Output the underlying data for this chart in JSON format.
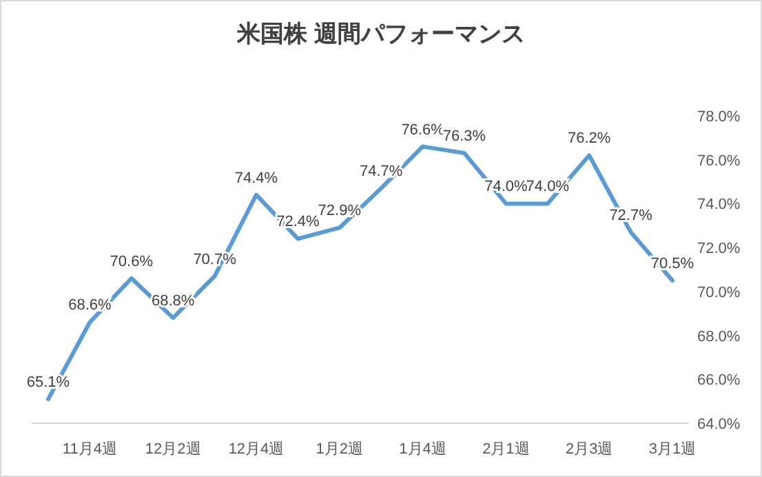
{
  "chart_data": {
    "type": "line",
    "title": "米国株 週間パフォーマンス",
    "categories": [
      null,
      "11月4週",
      null,
      "12月2週",
      null,
      "12月4週",
      null,
      "1月2週",
      null,
      "1月4週",
      null,
      "2月1週",
      null,
      "2月3週",
      null,
      "3月1週"
    ],
    "series": [
      {
        "color": "#5b9bd5",
        "values": [
          65.1,
          68.6,
          70.6,
          68.8,
          70.7,
          74.4,
          72.4,
          72.9,
          74.7,
          76.6,
          76.3,
          74.0,
          74.0,
          76.2,
          72.7,
          70.5
        ],
        "value_labels": [
          "65.1%",
          "68.6%",
          "70.6%",
          "68.8%",
          "70.7%",
          "74.4%",
          "72.4%",
          "72.9%",
          "74.7%",
          "76.6%",
          "76.3%",
          "74.0%",
          "74.0%",
          "76.2%",
          "72.7%",
          "70.5%"
        ]
      }
    ],
    "ylim": [
      64,
      78
    ],
    "yticks": [
      {
        "value": 64,
        "label": "64.0%"
      },
      {
        "value": 66,
        "label": "66.0%"
      },
      {
        "value": 68,
        "label": "68.0%"
      },
      {
        "value": 70,
        "label": "70.0%"
      },
      {
        "value": 72,
        "label": "72.0%"
      },
      {
        "value": 74,
        "label": "74.0%"
      },
      {
        "value": 76,
        "label": "76.0%"
      },
      {
        "value": 78,
        "label": "78.0%"
      }
    ],
    "grid": false,
    "marker": "none",
    "line_style": "solid"
  }
}
